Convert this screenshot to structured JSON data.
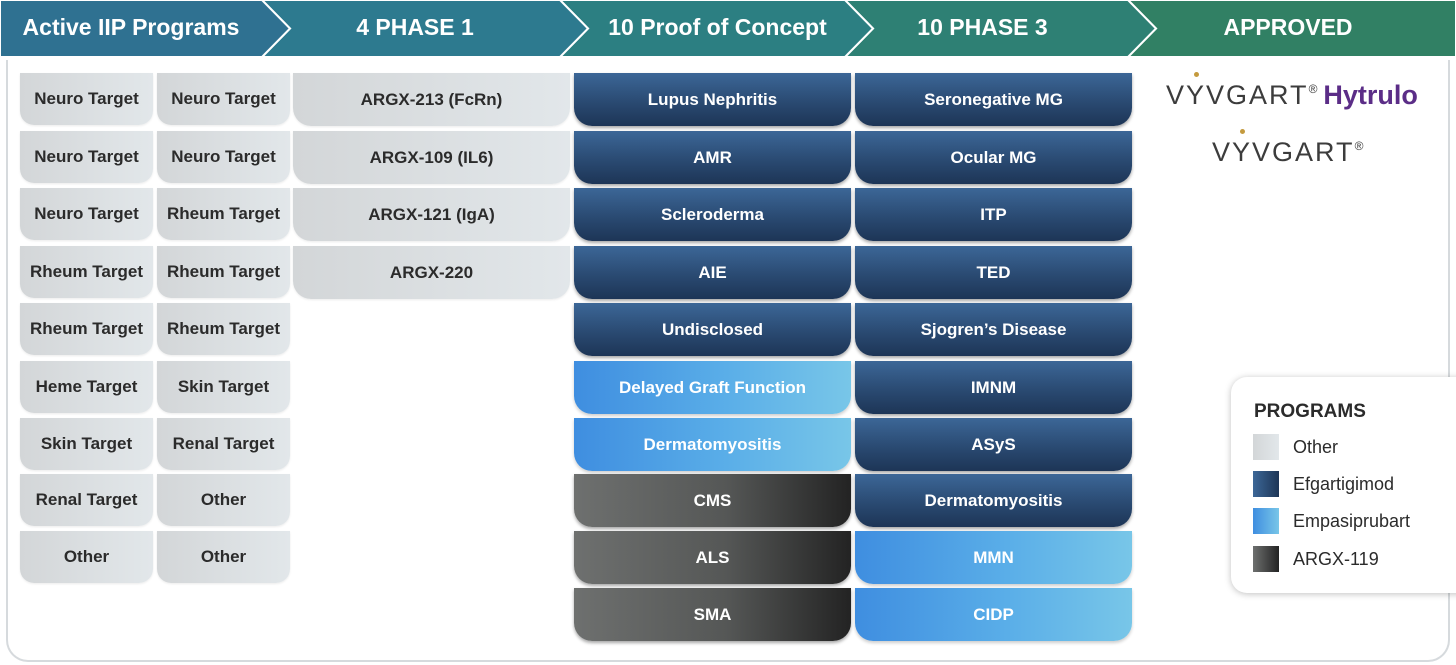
{
  "header": {
    "stages": [
      {
        "label": "Active IIP Programs",
        "color": "#2f7191"
      },
      {
        "label": "4 PHASE 1",
        "color": "#2d7a8f"
      },
      {
        "label": "10 Proof of Concept",
        "color": "#2c7f82"
      },
      {
        "label": "10 PHASE 3",
        "color": "#2e8074"
      },
      {
        "label": "APPROVED",
        "color": "#318064"
      }
    ]
  },
  "iip_programs": {
    "left_column": [
      "Neuro Target",
      "Neuro Target",
      "Neuro Target",
      "Rheum Target",
      "Rheum Target",
      "Heme Target",
      "Skin Target",
      "Renal Target",
      "Other"
    ],
    "right_column": [
      "Neuro Target",
      "Neuro Target",
      "Rheum Target",
      "Rheum Target",
      "Rheum Target",
      "Skin Target",
      "Renal Target",
      "Other",
      "Other"
    ]
  },
  "phase1": [
    {
      "label": "ARGX-213 (FcRn)",
      "program": "Other"
    },
    {
      "label": "ARGX-109 (IL6)",
      "program": "Other"
    },
    {
      "label": "ARGX-121 (IgA)",
      "program": "Other"
    },
    {
      "label": "ARGX-220",
      "program": "Other"
    }
  ],
  "proof_of_concept": [
    {
      "label": "Lupus Nephritis",
      "program": "Efgartigimod"
    },
    {
      "label": "AMR",
      "program": "Efgartigimod"
    },
    {
      "label": "Scleroderma",
      "program": "Efgartigimod"
    },
    {
      "label": "AIE",
      "program": "Efgartigimod"
    },
    {
      "label": "Undisclosed",
      "program": "Efgartigimod"
    },
    {
      "label": "Delayed Graft Function",
      "program": "Empasiprubart"
    },
    {
      "label": "Dermatomyositis",
      "program": "Empasiprubart"
    },
    {
      "label": "CMS",
      "program": "ARGX-119"
    },
    {
      "label": "ALS",
      "program": "ARGX-119"
    },
    {
      "label": "SMA",
      "program": "ARGX-119"
    }
  ],
  "phase3": [
    {
      "label": "Seronegative MG",
      "program": "Efgartigimod"
    },
    {
      "label": "Ocular MG",
      "program": "Efgartigimod"
    },
    {
      "label": "ITP",
      "program": "Efgartigimod"
    },
    {
      "label": "TED",
      "program": "Efgartigimod"
    },
    {
      "label": "Sjogren’s Disease",
      "program": "Efgartigimod"
    },
    {
      "label": "IMNM",
      "program": "Efgartigimod"
    },
    {
      "label": "ASyS",
      "program": "Efgartigimod"
    },
    {
      "label": "Dermatomyositis",
      "program": "Efgartigimod"
    },
    {
      "label": "MMN",
      "program": "Empasiprubart"
    },
    {
      "label": "CIDP",
      "program": "Empasiprubart"
    }
  ],
  "approved": {
    "brand1": {
      "pre": "V",
      "y": "Y",
      "post": "VGART",
      "reg": "®",
      "suffix": "Hytrulo"
    },
    "brand2": {
      "pre": "V",
      "y": "Y",
      "post": "VGART",
      "reg": "®"
    }
  },
  "legend": {
    "title": "PROGRAMS",
    "items": [
      {
        "label": "Other",
        "gradient": [
          "#d3d6d8",
          "#e2e7ea"
        ]
      },
      {
        "label": "Efgartigimod",
        "gradient": [
          "#3c6797",
          "#1d3556"
        ]
      },
      {
        "label": "Empasiprubart",
        "gradient": [
          "#3f8ee0",
          "#78c6e8"
        ]
      },
      {
        "label": "ARGX-119",
        "gradient": [
          "#6e706f",
          "#232323"
        ]
      }
    ]
  }
}
